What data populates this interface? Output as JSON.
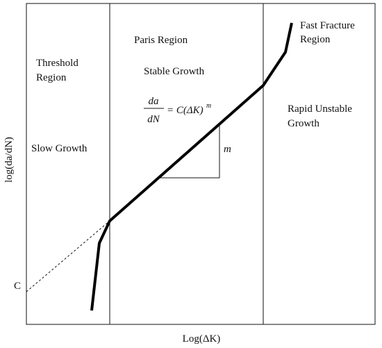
{
  "axes": {
    "x_label": "Log(ΔK)",
    "y_label": "log(da/dN)",
    "intercept_label": "C"
  },
  "regions": [
    {
      "name": "Threshold Region",
      "lines": [
        "Threshold",
        "Region"
      ],
      "description": "Slow Growth"
    },
    {
      "name": "Paris Region",
      "lines": [
        "Paris Region"
      ],
      "description": "Stable Growth"
    },
    {
      "name": "Rapid Unstable Growth",
      "lines": [
        "Rapid Unstable",
        "Growth"
      ]
    },
    {
      "name": "Fast Fracture Region",
      "lines": [
        "Fast Fracture",
        "Region"
      ]
    }
  ],
  "equation": {
    "numerator": "da",
    "denominator": "dN",
    "rhs": "= C(ΔK)",
    "exponent": "m"
  },
  "slope_label": "m"
}
